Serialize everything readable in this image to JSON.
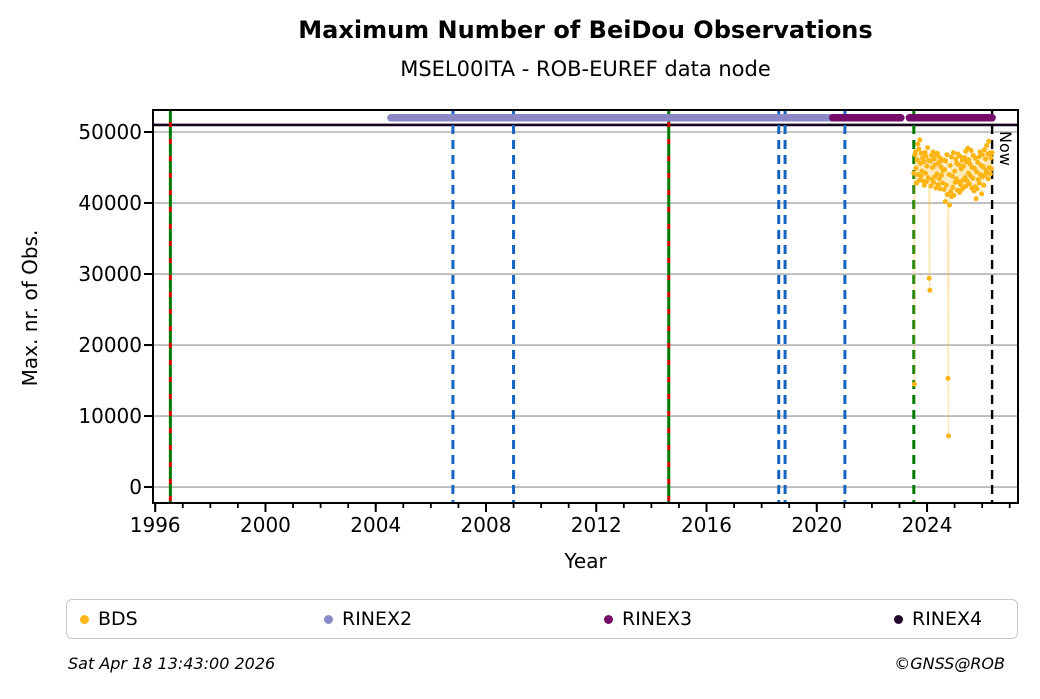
{
  "title": "Maximum Number of BeiDou Observations",
  "subtitle": "MSEL00ITA - ROB-EUREF data node",
  "footer": {
    "timestamp": "Sat Apr 18 13:43:00 2026",
    "credit": "©GNSS@ROB"
  },
  "legend": [
    {
      "label": "BDS",
      "color": "#fdb515"
    },
    {
      "label": "RINEX2",
      "color": "#8c87c6"
    },
    {
      "label": "RINEX3",
      "color": "#770b6a"
    },
    {
      "label": "RINEX4",
      "color": "#22092c"
    }
  ],
  "chart_data": {
    "type": "scatter",
    "title": "Maximum Number of BeiDou Observations",
    "subtitle": "MSEL00ITA - ROB-EUREF data node",
    "xlabel": "Year",
    "ylabel": "Max. nr. of Obs.",
    "xlim": [
      1995.92,
      2027.3
    ],
    "ylim": [
      -2250,
      53100
    ],
    "xticks_major": [
      1996,
      2000,
      2004,
      2008,
      2012,
      2016,
      2020,
      2024
    ],
    "xticks_minor_from": 1996,
    "xticks_minor_to": 2027,
    "yticks": [
      0,
      10000,
      20000,
      30000,
      40000,
      50000
    ],
    "grid": {
      "axis": "y",
      "color": "#b3b3b3"
    },
    "now_line": {
      "year": 2026.36,
      "label": "Now",
      "color": "#000000",
      "dash": "9,6"
    },
    "event_lines": [
      {
        "year": 1996.55,
        "style": "green-red"
      },
      {
        "year": 2006.8,
        "style": "blue"
      },
      {
        "year": 2009.0,
        "style": "blue"
      },
      {
        "year": 2014.63,
        "style": "green-red"
      },
      {
        "year": 2018.62,
        "style": "blue"
      },
      {
        "year": 2018.85,
        "style": "blue"
      },
      {
        "year": 2021.02,
        "style": "blue"
      },
      {
        "year": 2023.52,
        "style": "green"
      }
    ],
    "event_colors": {
      "blue": "#1565c0",
      "green": "#007a00",
      "red": "#d40000"
    },
    "rinex_bars": [
      {
        "name": "RINEX2",
        "color": "#8c87c6",
        "start": 2004.55,
        "end": 2021.05,
        "value": 52000
      },
      {
        "name": "RINEX3",
        "color": "#770b6a",
        "start": 2020.58,
        "end": 2023.05,
        "value": 52000
      },
      {
        "name": "RINEX3",
        "color": "#770b6a",
        "start": 2023.36,
        "end": 2026.36,
        "value": 52000
      }
    ],
    "rinex4_line": {
      "name": "RINEX4",
      "color": "#16061d",
      "value": 51000,
      "start": 1995.92,
      "end": 2027.3
    },
    "bds_series": {
      "name": "BDS",
      "color": "#fdb515",
      "connector_color": "rgba(253,181,21,0.30)",
      "x_start": 2023.52,
      "x_step": 0.02,
      "y_unit": 1000,
      "values": [
        44.2,
        14.5,
        46.8,
        47.2,
        44.9,
        42.8,
        46.1,
        48.3,
        44.0,
        47.6,
        43.2,
        48.9,
        45.6,
        43.8,
        47.0,
        44.5,
        46.3,
        43.1,
        45.8,
        42.5,
        47.1,
        44.2,
        46.6,
        43.0,
        45.2,
        47.8,
        43.6,
        46.0,
        29.4,
        27.7,
        45.9,
        42.4,
        46.7,
        43.3,
        45.0,
        47.2,
        42.9,
        46.2,
        43.7,
        45.4,
        42.1,
        46.8,
        44.1,
        47.0,
        42.6,
        45.7,
        43.4,
        46.4,
        42.0,
        45.1,
        43.9,
        46.0,
        42.8,
        44.6,
        46.1,
        41.9,
        44.7,
        40.2,
        45.9,
        42.5,
        46.8,
        41.2,
        15.3,
        7.2,
        44.0,
        39.7,
        45.3,
        41.6,
        46.5,
        40.9,
        43.8,
        42.2,
        47.1,
        41.1,
        44.5,
        42.9,
        46.2,
        43.4,
        45.6,
        41.8,
        46.9,
        43.0,
        45.4,
        41.5,
        46.6,
        42.6,
        44.8,
        41.9,
        46.0,
        43.2,
        45.2,
        42.2,
        46.4,
        43.6,
        47.3,
        42.4,
        45.8,
        43.1,
        47.7,
        44.2,
        46.1,
        42.7,
        45.5,
        43.8,
        47.4,
        42.1,
        45.0,
        43.5,
        46.7,
        41.7,
        44.9,
        42.3,
        46.3,
        40.6,
        44.4,
        42.0,
        45.7,
        43.3,
        46.5,
        42.8,
        47.2,
        44.0,
        45.3,
        41.3,
        46.8,
        43.7,
        45.1,
        42.5,
        47.5,
        43.9,
        46.2,
        44.6,
        48.1,
        44.3,
        46.9,
        43.4,
        48.7,
        45.0,
        47.0,
        44.1,
        46.4,
        44.8,
        47.1
      ]
    }
  }
}
